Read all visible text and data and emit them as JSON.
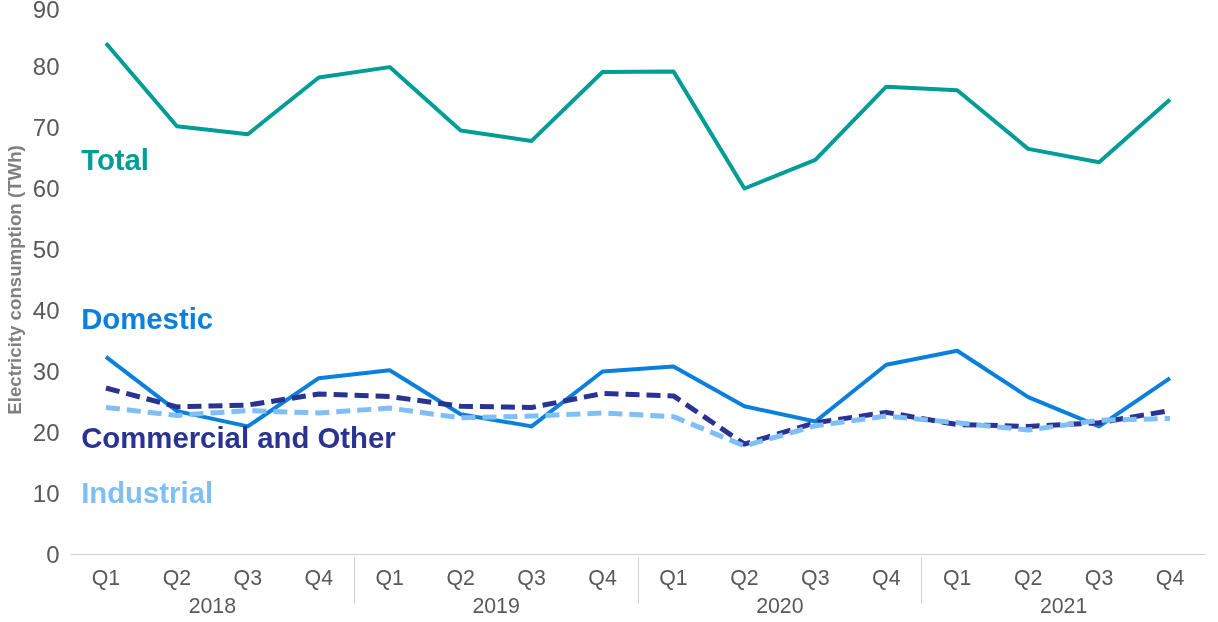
{
  "chart_data": {
    "type": "line",
    "ylabel": "Electricity consumption (TWh)",
    "categories": [
      "Q1",
      "Q2",
      "Q3",
      "Q4",
      "Q1",
      "Q2",
      "Q3",
      "Q4",
      "Q1",
      "Q2",
      "Q3",
      "Q4",
      "Q1",
      "Q2",
      "Q3",
      "Q4"
    ],
    "annotations": [
      "2018",
      "2019",
      "2020",
      "2021"
    ],
    "ylim": [
      0,
      90
    ],
    "yticks": [
      0,
      10,
      20,
      30,
      40,
      50,
      60,
      70,
      80,
      90
    ],
    "grid": false,
    "marker": "none",
    "series": [
      {
        "name": "Total",
        "color": "#009c96",
        "line_style": "solid",
        "values": [
          83.8,
          70.2,
          68.9,
          78.2,
          79.9,
          69.5,
          67.8,
          79.1,
          79.2,
          60.0,
          64.7,
          76.7,
          76.1,
          66.5,
          64.3,
          74.6
        ]
      },
      {
        "name": "Domestic",
        "color": "#0a7fdc",
        "line_style": "solid",
        "values": [
          32.4,
          23.5,
          21.0,
          28.9,
          30.2,
          23.0,
          21.0,
          30.0,
          30.8,
          24.3,
          21.8,
          31.1,
          33.4,
          25.8,
          21.0,
          28.9
        ]
      },
      {
        "name": "Commercial and Other",
        "color": "#2a3391",
        "line_style": "dashed",
        "values": [
          27.3,
          24.2,
          24.5,
          26.3,
          25.9,
          24.3,
          24.1,
          26.4,
          26.0,
          18.1,
          21.6,
          23.3,
          21.3,
          21.0,
          21.6,
          23.6
        ]
      },
      {
        "name": "Industrial",
        "color": "#7fbff5",
        "line_style": "dashed",
        "values": [
          24.1,
          22.8,
          23.6,
          23.2,
          24.0,
          22.4,
          22.7,
          23.2,
          22.6,
          17.8,
          21.1,
          22.7,
          21.6,
          20.4,
          22.0,
          22.3
        ]
      }
    ]
  }
}
